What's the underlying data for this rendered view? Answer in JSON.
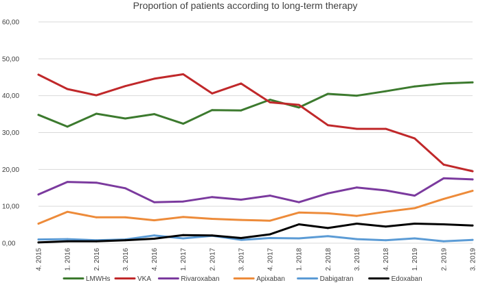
{
  "chart_data": {
    "type": "line",
    "title": "Proportion of patients according to long-term therapy",
    "xlabel": "",
    "ylabel": "",
    "ylim": [
      0,
      60
    ],
    "yticks": [
      "0,00",
      "10,00",
      "20,00",
      "30,00",
      "40,00",
      "50,00",
      "60,00"
    ],
    "grid": true,
    "legend": "bottom",
    "categories": [
      "4. 2015",
      "1. 2016",
      "2. 2016",
      "3. 2016",
      "4. 2016",
      "1. 2017",
      "2. 2017",
      "3. 2017",
      "4. 2017",
      "1. 2018",
      "2. 2018",
      "3. 2018",
      "4. 2018",
      "1. 2019",
      "2. 2019",
      "3. 2019"
    ],
    "series": [
      {
        "name": "LMWHs",
        "color": "#3c7a2e",
        "values": [
          34.8,
          31.6,
          35.1,
          33.8,
          35.0,
          32.4,
          36.1,
          36.0,
          38.9,
          36.8,
          40.5,
          40.0,
          41.2,
          42.5,
          43.3,
          43.6
        ]
      },
      {
        "name": "VKA",
        "color": "#c0282a",
        "values": [
          45.7,
          41.8,
          40.1,
          42.6,
          44.6,
          45.8,
          40.6,
          43.3,
          38.2,
          37.5,
          32.0,
          31.0,
          31.0,
          28.4,
          21.3,
          19.5
        ]
      },
      {
        "name": "Rivaroxaban",
        "color": "#7b3a9e",
        "values": [
          13.2,
          16.6,
          16.4,
          14.9,
          11.1,
          11.3,
          12.5,
          11.8,
          12.9,
          11.1,
          13.5,
          15.1,
          14.3,
          12.9,
          17.6,
          17.3
        ]
      },
      {
        "name": "Apixaban",
        "color": "#ed8b3a",
        "values": [
          5.3,
          8.5,
          7.0,
          7.0,
          6.2,
          7.1,
          6.6,
          6.3,
          6.1,
          8.3,
          8.1,
          7.4,
          8.5,
          9.5,
          12.0,
          14.2
        ]
      },
      {
        "name": "Dabigatran",
        "color": "#5b9bd5",
        "values": [
          1.0,
          1.1,
          0.8,
          1.0,
          2.1,
          1.3,
          2.0,
          0.9,
          1.4,
          1.3,
          1.9,
          1.1,
          0.8,
          1.3,
          0.5,
          0.9
        ]
      },
      {
        "name": "Edoxaban",
        "color": "#000000",
        "values": [
          0.2,
          0.5,
          0.5,
          0.8,
          1.2,
          2.2,
          2.1,
          1.4,
          2.4,
          5.1,
          4.1,
          5.3,
          4.5,
          5.3,
          5.1,
          4.8
        ]
      }
    ]
  }
}
